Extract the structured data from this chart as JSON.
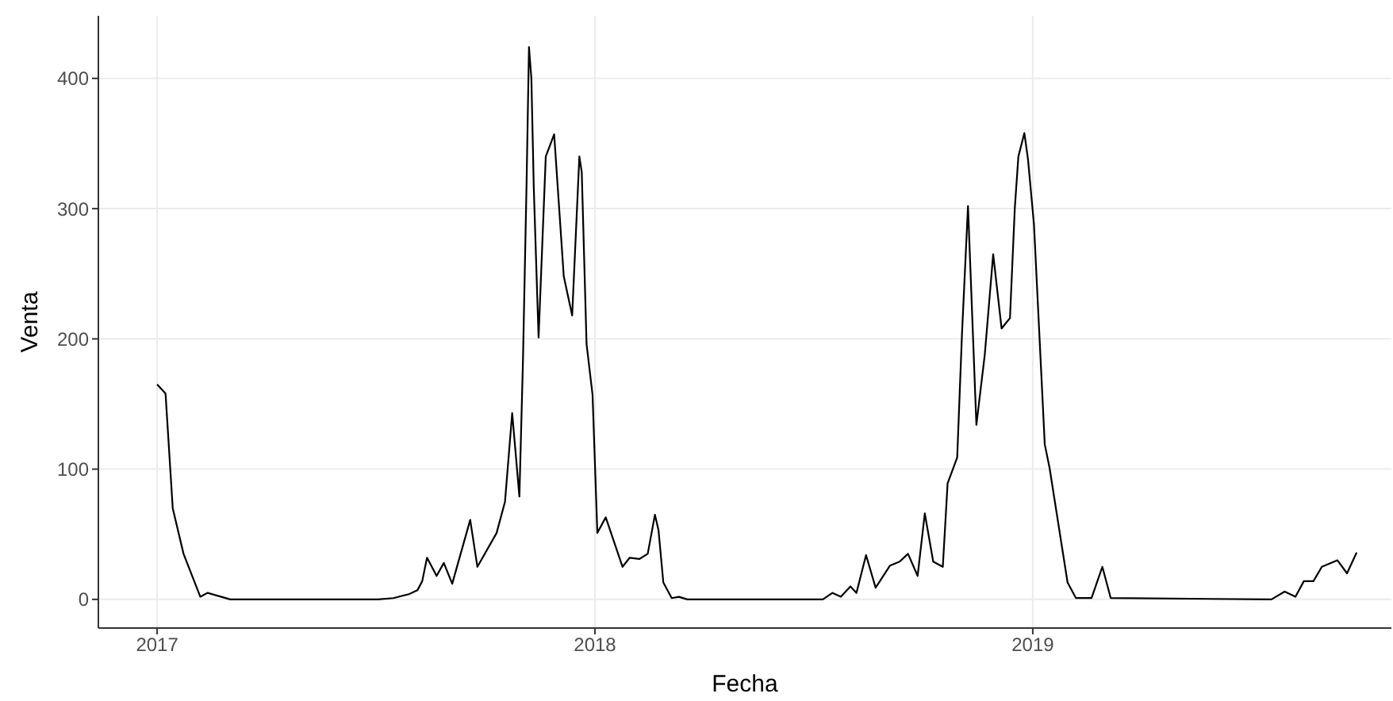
{
  "chart_data": {
    "type": "line",
    "xlabel": "Fecha",
    "ylabel": "Venta",
    "grid": true,
    "legend": false,
    "marker": "none",
    "line_style": "solid",
    "xlim": [
      "2016-11-13",
      "2019-10-27"
    ],
    "xticks": [
      {
        "value": "2017-01-01",
        "label": "2017"
      },
      {
        "value": "2018-01-01",
        "label": "2018"
      },
      {
        "value": "2019-01-01",
        "label": "2019"
      }
    ],
    "ylim": [
      -22,
      448
    ],
    "yticks": [
      0,
      100,
      200,
      300,
      400
    ],
    "series": [
      {
        "color": "#000000",
        "x": [
          "2017-01-01",
          "2017-01-08",
          "2017-01-14",
          "2017-01-23",
          "2017-02-06",
          "2017-02-12",
          "2017-03-03",
          "2017-07-04",
          "2017-07-17",
          "2017-07-30",
          "2017-08-06",
          "2017-08-10",
          "2017-08-14",
          "2017-08-22",
          "2017-08-28",
          "2017-09-04",
          "2017-09-19",
          "2017-09-25",
          "2017-10-11",
          "2017-10-18",
          "2017-10-24",
          "2017-10-30",
          "2017-11-02",
          "2017-11-05",
          "2017-11-07",
          "2017-11-09",
          "2017-11-11",
          "2017-11-15",
          "2017-11-21",
          "2017-11-28",
          "2017-12-06",
          "2017-12-13",
          "2017-12-19",
          "2017-12-21",
          "2017-12-25",
          "2017-12-30",
          "2018-01-03",
          "2018-01-10",
          "2018-01-24",
          "2018-01-30",
          "2018-02-07",
          "2018-02-14",
          "2018-02-20",
          "2018-02-23",
          "2018-02-27",
          "2018-03-06",
          "2018-03-12",
          "2018-03-19",
          "2018-07-10",
          "2018-07-18",
          "2018-07-25",
          "2018-08-02",
          "2018-08-07",
          "2018-08-15",
          "2018-08-23",
          "2018-09-04",
          "2018-09-12",
          "2018-09-19",
          "2018-09-27",
          "2018-10-03",
          "2018-10-10",
          "2018-10-18",
          "2018-10-22",
          "2018-10-30",
          "2018-11-03",
          "2018-11-08",
          "2018-11-10",
          "2018-11-15",
          "2018-11-22",
          "2018-11-29",
          "2018-12-06",
          "2018-12-13",
          "2018-12-17",
          "2018-12-20",
          "2018-12-25",
          "2018-12-28",
          "2019-01-02",
          "2019-01-11",
          "2019-01-15",
          "2019-01-30",
          "2019-02-06",
          "2019-02-19",
          "2019-02-28",
          "2019-03-07",
          "2019-07-19",
          "2019-07-30",
          "2019-08-08",
          "2019-08-15",
          "2019-08-23",
          "2019-08-30",
          "2019-09-12",
          "2019-09-20",
          "2019-09-28"
        ],
        "values": [
          165,
          158,
          70,
          35,
          2,
          5,
          0,
          0,
          1,
          4,
          7,
          14,
          32,
          18,
          28,
          12,
          61,
          25,
          51,
          75,
          143,
          79,
          184,
          320,
          424,
          400,
          316,
          201,
          340,
          357,
          248,
          218,
          340,
          328,
          196,
          157,
          51,
          63,
          25,
          32,
          31,
          35,
          65,
          53,
          13,
          1,
          2,
          0,
          0,
          5,
          2,
          10,
          5,
          34,
          9,
          26,
          29,
          35,
          18,
          66,
          29,
          25,
          89,
          109,
          204,
          302,
          254,
          134,
          188,
          265,
          208,
          216,
          300,
          340,
          358,
          338,
          288,
          119,
          101,
          13,
          1,
          1,
          25,
          1,
          0,
          6,
          2,
          14,
          14,
          25,
          30,
          20,
          36
        ]
      }
    ]
  }
}
